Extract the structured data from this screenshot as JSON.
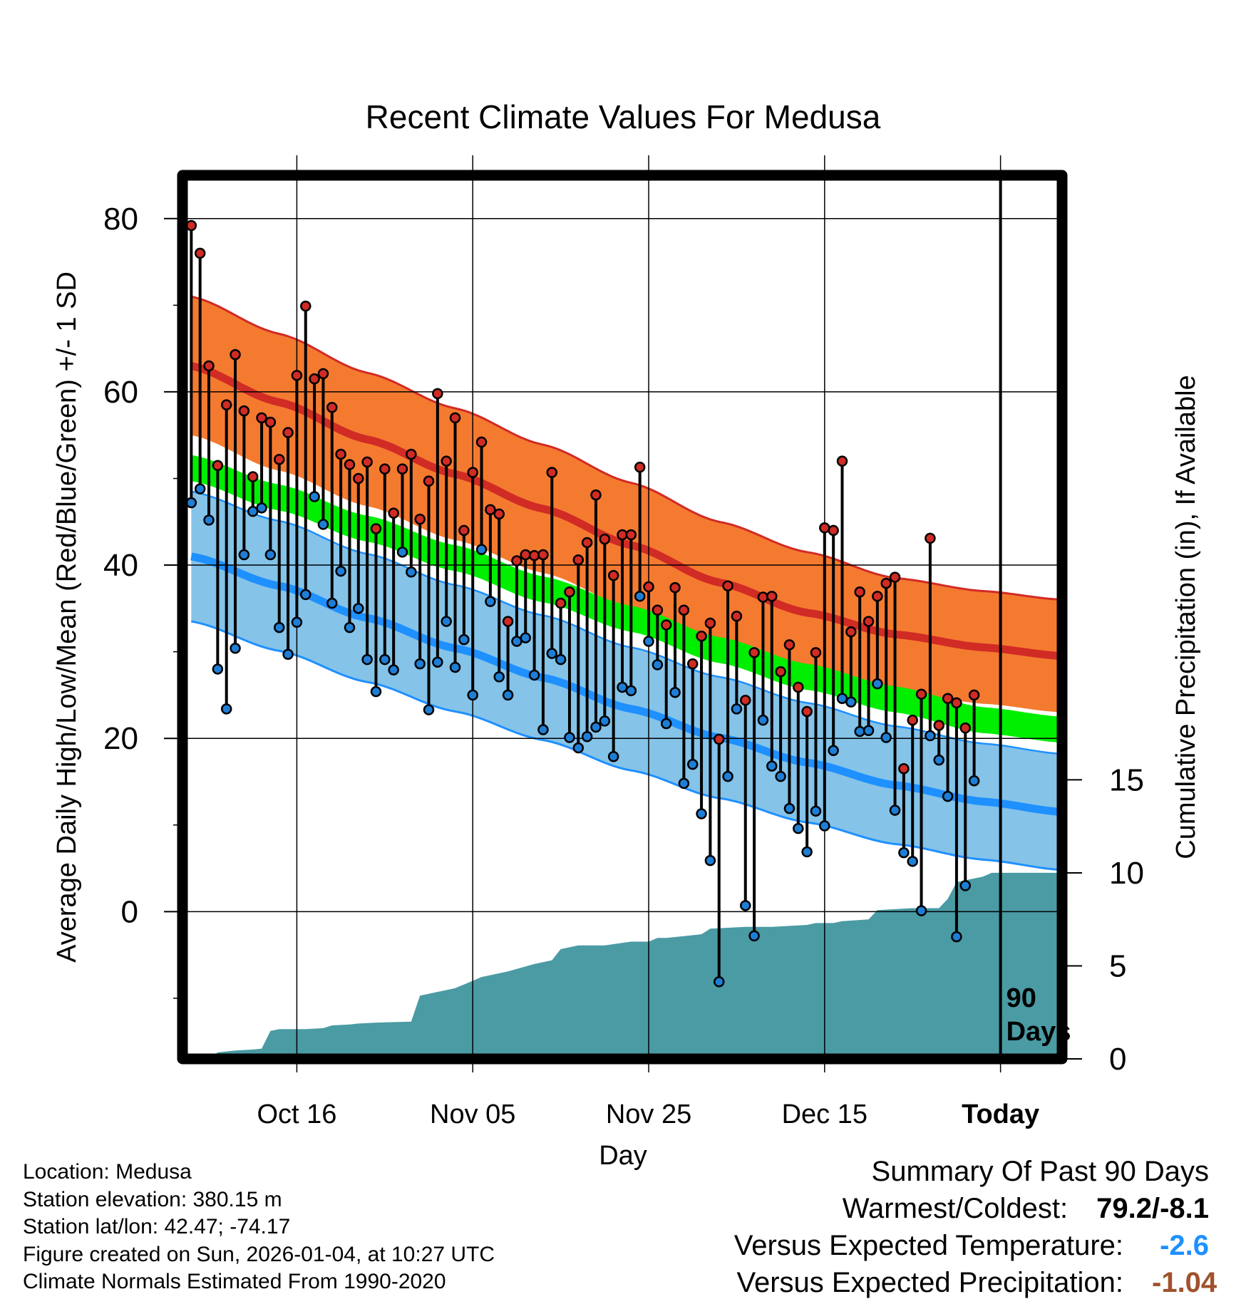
{
  "chart_data": {
    "type": "climate_temperature_precip",
    "title": "Recent Climate Values For Medusa",
    "xlabel": "Day",
    "ylabel_left": "Average Daily High/Low/Mean (Red/Blue/Green) +/- 1 SD",
    "ylabel_right": "Cumulative Precipitation (in), If Available",
    "x_range_days": [
      -91,
      9
    ],
    "ylim_left": [
      -17,
      85
    ],
    "yticks_left": [
      0,
      20,
      40,
      60,
      80
    ],
    "ylim_right": [
      0,
      47.5
    ],
    "yticks_right": [
      0,
      5,
      10,
      15
    ],
    "x_tick_labels": [
      {
        "day": -78,
        "label": "Oct 16"
      },
      {
        "day": -58,
        "label": "Nov 05"
      },
      {
        "day": -38,
        "label": "Nov 25"
      },
      {
        "day": -18,
        "label": "Dec 15"
      },
      {
        "day": 2,
        "label": "Today"
      }
    ],
    "today_marker_day": 2,
    "today_marker_label": [
      "90",
      "Days"
    ],
    "normals": {
      "day": [
        -90,
        -80,
        -70,
        -60,
        -50,
        -40,
        -30,
        -20,
        -10,
        0,
        9
      ],
      "high_mean": [
        63.0,
        58.8,
        54.5,
        50.5,
        46.5,
        42.3,
        38.0,
        34.5,
        32.0,
        30.5,
        29.5
      ],
      "high_sd": [
        8.0,
        7.9,
        7.7,
        7.6,
        7.4,
        7.2,
        7.0,
        7.0,
        6.5,
        6.5,
        6.5
      ],
      "low_mean": [
        41.0,
        37.6,
        33.9,
        30.4,
        27.0,
        23.4,
        20.1,
        17.2,
        14.6,
        12.7,
        11.5
      ],
      "low_sd": [
        7.5,
        7.5,
        7.4,
        7.3,
        7.2,
        7.1,
        7.0,
        6.9,
        6.8,
        6.7,
        6.7
      ],
      "mean_mean": [
        51.2,
        47.8,
        44.2,
        40.8,
        37.2,
        33.8,
        30.2,
        27.1,
        24.5,
        22.1,
        21.0
      ],
      "mean_sd": [
        1.5,
        1.5,
        1.5,
        1.5,
        1.5,
        1.5,
        1.5,
        1.5,
        1.5,
        1.5,
        1.5
      ]
    },
    "daily_high": [
      79.2,
      76.0,
      63.0,
      51.5,
      58.5,
      64.3,
      57.8,
      50.2,
      57.0,
      56.5,
      52.2,
      55.3,
      61.9,
      69.9,
      61.5,
      62.1,
      58.2,
      52.8,
      51.6,
      50.0,
      51.9,
      44.2,
      51.1,
      46.0,
      51.1,
      52.8,
      45.3,
      49.7,
      59.8,
      52.0,
      57.0,
      44.0,
      50.7,
      54.2,
      46.4,
      45.9,
      33.5,
      40.5,
      41.2,
      41.1,
      41.2,
      50.7,
      35.6,
      36.9,
      40.6,
      42.6,
      48.1,
      43.0,
      38.8,
      43.5,
      43.5,
      51.3,
      37.5,
      34.8,
      33.1,
      37.4,
      34.8,
      28.6,
      31.8,
      33.3,
      19.9,
      37.6,
      34.1,
      24.4,
      29.9,
      36.3,
      36.4,
      27.7,
      30.8,
      25.9,
      23.1,
      29.9,
      44.3,
      44.0,
      52.0,
      32.3,
      36.9,
      33.5,
      36.4,
      37.9,
      38.6,
      16.5,
      22.1,
      25.1,
      43.1,
      21.5,
      24.6,
      24.1,
      21.2,
      25.0
    ],
    "daily_low": [
      47.2,
      48.8,
      45.2,
      28.0,
      23.4,
      30.4,
      41.2,
      46.2,
      46.6,
      41.2,
      32.8,
      29.7,
      33.4,
      36.6,
      47.9,
      44.7,
      35.6,
      39.3,
      32.8,
      35.0,
      29.1,
      25.4,
      29.1,
      27.9,
      41.5,
      39.2,
      28.6,
      23.3,
      28.8,
      33.5,
      28.2,
      31.4,
      25.0,
      41.8,
      35.8,
      27.1,
      25.0,
      31.2,
      31.6,
      27.3,
      21.0,
      29.8,
      29.1,
      20.1,
      18.9,
      20.2,
      21.3,
      22.0,
      17.9,
      25.9,
      25.5,
      36.4,
      31.2,
      28.5,
      21.7,
      25.3,
      14.8,
      17.0,
      11.3,
      5.9,
      -8.1,
      15.6,
      23.4,
      0.7,
      -2.8,
      22.1,
      16.8,
      15.6,
      11.9,
      9.6,
      6.9,
      11.6,
      9.9,
      18.6,
      24.6,
      24.2,
      20.8,
      20.9,
      26.3,
      20.1,
      11.7,
      6.8,
      5.8,
      0.1,
      20.3,
      17.5,
      13.3,
      -2.9,
      3.0,
      15.1
    ],
    "cumulative_precip": {
      "day": [
        -90,
        -88,
        -87,
        -85,
        -83,
        -82,
        -81,
        -80,
        -78,
        -77,
        -75,
        -74,
        -72,
        -71,
        -69,
        -65,
        -64,
        -62,
        -60,
        -59,
        -57,
        -55,
        -54,
        -51,
        -49,
        -48,
        -46,
        -44,
        -43,
        -40,
        -38,
        -37,
        -36,
        -34,
        -32,
        -31,
        -27,
        -26,
        -25,
        -24,
        -20,
        -19,
        -17,
        -16,
        -13,
        -12,
        -8,
        -7,
        -5,
        -4,
        -3,
        0,
        1,
        9
      ],
      "in": [
        0.0,
        0.0,
        0.35,
        0.45,
        0.5,
        0.55,
        1.5,
        1.6,
        1.6,
        1.6,
        1.65,
        1.8,
        1.85,
        1.9,
        1.95,
        2.0,
        3.4,
        3.6,
        3.8,
        4.0,
        4.4,
        4.6,
        4.7,
        5.1,
        5.3,
        5.9,
        6.1,
        6.1,
        6.1,
        6.3,
        6.3,
        6.5,
        6.5,
        6.6,
        6.7,
        7.0,
        7.1,
        7.1,
        7.1,
        7.1,
        7.2,
        7.3,
        7.3,
        7.4,
        7.5,
        8.0,
        8.1,
        8.1,
        8.1,
        8.6,
        9.5,
        9.8,
        10.0,
        10.0
      ]
    },
    "today_precip_fill": 10.0
  },
  "info": {
    "location": "Location: Medusa",
    "elevation": "Station elevation: 380.15 m",
    "latlon": "Station lat/lon: 42.47; -74.17",
    "created": "Figure created on Sun, 2026-01-04, at 10:27 UTC",
    "normals": "Climate Normals Estimated From 1990-2020"
  },
  "summary": {
    "title": "Summary Of Past 90 Days",
    "warmest_label": "Warmest/Coldest:",
    "warmest_value": "79.2/-8.1",
    "temp_label": "Versus Expected Temperature:",
    "temp_value": "-2.6",
    "temp_color": "#1e90ff",
    "precip_label": "Versus Expected Precipitation:",
    "precip_value": "-1.04",
    "precip_color": "#a0522d"
  },
  "colors": {
    "high_band": "#f47a30",
    "high_line": "#d12b25",
    "low_band": "#85c3e8",
    "low_line": "#1e90ff",
    "mean_band": "#00ee00",
    "overlap_dark": "#9a1010",
    "precip": "#4a9ba4",
    "high_point": "#d12b25",
    "low_point": "#1e7ed6"
  }
}
